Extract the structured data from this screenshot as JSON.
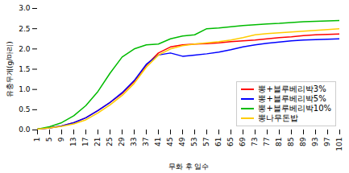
{
  "chart_data": {
    "type": "line",
    "x": [
      1,
      5,
      9,
      13,
      17,
      21,
      25,
      29,
      33,
      37,
      41,
      45,
      49,
      53,
      57,
      61,
      65,
      69,
      73,
      77,
      81,
      85,
      89,
      93,
      97,
      101
    ],
    "series": [
      {
        "name": "뽕+블루베리박3%",
        "color": "#ff0000",
        "values": [
          0.02,
          0.05,
          0.1,
          0.18,
          0.3,
          0.48,
          0.68,
          0.9,
          1.2,
          1.6,
          1.9,
          2.05,
          2.1,
          2.12,
          2.13,
          2.15,
          2.18,
          2.2,
          2.22,
          2.25,
          2.28,
          2.3,
          2.33,
          2.35,
          2.36,
          2.37
        ]
      },
      {
        "name": "뽕+블루베리박5%",
        "color": "#0000ff",
        "values": [
          0.02,
          0.05,
          0.1,
          0.18,
          0.3,
          0.48,
          0.68,
          0.92,
          1.22,
          1.62,
          1.85,
          1.9,
          1.82,
          1.85,
          1.88,
          1.92,
          1.98,
          2.05,
          2.1,
          2.14,
          2.17,
          2.2,
          2.22,
          2.23,
          2.24,
          2.25
        ]
      },
      {
        "name": "뽕+블루베리박10%",
        "color": "#00bb00",
        "values": [
          0.02,
          0.08,
          0.18,
          0.35,
          0.6,
          0.95,
          1.4,
          1.8,
          2.0,
          2.1,
          2.12,
          2.25,
          2.32,
          2.35,
          2.5,
          2.52,
          2.55,
          2.58,
          2.6,
          2.62,
          2.63,
          2.65,
          2.67,
          2.68,
          2.69,
          2.7
        ]
      },
      {
        "name": "뽕나무돈밥",
        "color": "#ffcc00",
        "values": [
          0.02,
          0.05,
          0.09,
          0.15,
          0.25,
          0.42,
          0.62,
          0.85,
          1.15,
          1.55,
          1.85,
          2.0,
          2.08,
          2.12,
          2.15,
          2.18,
          2.22,
          2.28,
          2.35,
          2.38,
          2.4,
          2.42,
          2.44,
          2.46,
          2.48,
          2.5
        ]
      }
    ],
    "xlabel": "무화 후 일수",
    "ylabel": "유충무게(g/마리)",
    "xlim": [
      1,
      101
    ],
    "xticks": [
      1,
      5,
      9,
      13,
      17,
      21,
      25,
      29,
      33,
      37,
      41,
      45,
      49,
      53,
      57,
      61,
      65,
      69,
      73,
      77,
      81,
      85,
      89,
      93,
      97,
      101
    ],
    "ylim": [
      0.0,
      3.0
    ],
    "yticks": [
      {
        "value": 0,
        "label": "0.0"
      },
      0.5,
      {
        "value": 1,
        "label": "1.0"
      },
      1.5,
      {
        "value": 2,
        "label": "2.0"
      },
      2.5,
      {
        "value": 3,
        "label": "3.0"
      }
    ],
    "grid": false,
    "legend": "lower right"
  }
}
